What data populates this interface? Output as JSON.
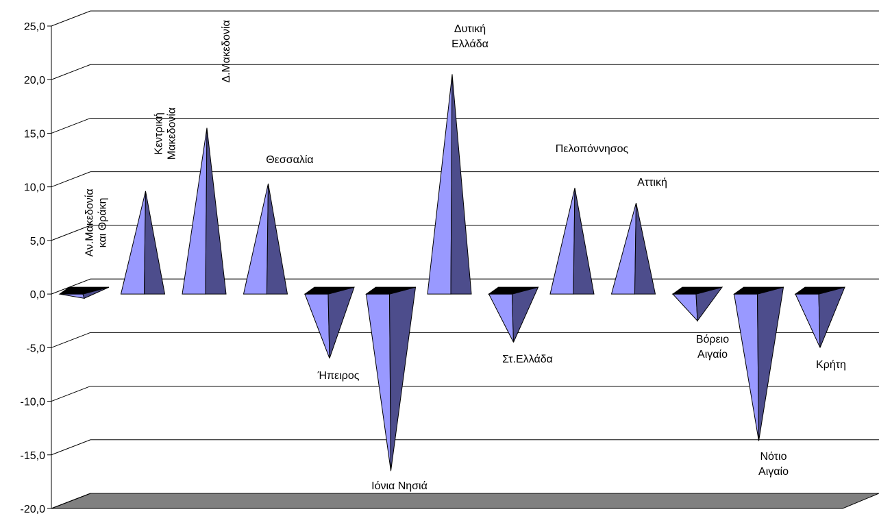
{
  "chart_data": {
    "type": "bar",
    "bar_shape": "3d-pyramid",
    "title": "",
    "xlabel": "",
    "ylabel": "",
    "ylim": [
      -20,
      25
    ],
    "y_ticks": [
      25,
      20,
      15,
      10,
      5,
      0,
      -5,
      -10,
      -15,
      -20
    ],
    "y_tick_labels": [
      "25,0",
      "20,0",
      "15,0",
      "10,0",
      "5,0",
      "0,0",
      "-5,0",
      "-10,0",
      "-15,0",
      "-20,0"
    ],
    "grid": true,
    "legend": "none",
    "categories": [
      "Αν.Μακεδονία και Θράκη",
      "Κεντρική Μακεδονία",
      "Δ.Μακεδονία",
      "Θεσσαλία",
      "Ήπειρος",
      "Ιόνια Νησιά",
      "Δυτική Ελλάδα",
      "Στ.Ελλάδα",
      "Πελοπόννησος",
      "Αττική",
      "Βόρειο Αιγαίο",
      "Νότιο Αιγαίο",
      "Κρήτη"
    ],
    "values": [
      -0.4,
      9.6,
      15.5,
      10.3,
      -6.0,
      -16.5,
      20.5,
      -4.5,
      9.9,
      8.5,
      -2.5,
      -13.7,
      -5.0
    ],
    "colors": {
      "face_light": "#9999ff",
      "face_dark": "#4d4d8c",
      "base_top": "#000000",
      "floor": "#808080",
      "grid": "#000000"
    }
  }
}
